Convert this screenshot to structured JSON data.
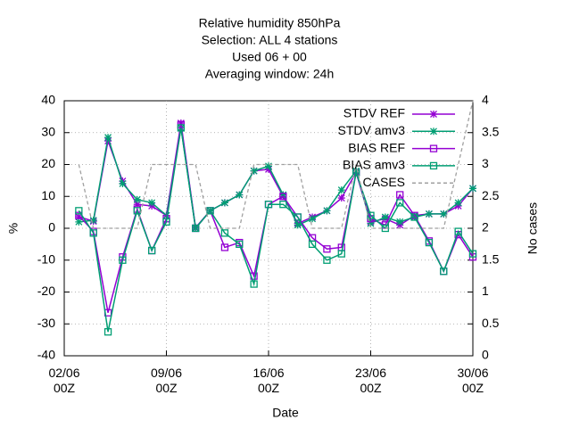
{
  "chart_data": {
    "type": "line",
    "title": [
      "Relative humidity 850hPa",
      "Selection: ALL      4 stations",
      "Used  06  + 00",
      "Averaging window: 24h"
    ],
    "xlabel": "Date",
    "ylabel": "%",
    "y2label": "No cases",
    "x": [
      3,
      4,
      5,
      6,
      7,
      8,
      9,
      10,
      11,
      12,
      13,
      14,
      15,
      16,
      17,
      18,
      19,
      20,
      21,
      22,
      23,
      24,
      25,
      26,
      27,
      28,
      29,
      30
    ],
    "series": [
      {
        "name": "STDV REF",
        "color": "#9400d3",
        "marker": "star",
        "values": [
          3.6,
          2.2,
          27.4,
          14.8,
          7.5,
          7,
          4,
          33,
          0.2,
          5.5,
          8,
          10.5,
          18,
          18.5,
          10,
          1.5,
          3.5,
          5.5,
          9.5,
          17.5,
          2,
          3,
          1,
          4,
          4.5,
          4.5,
          7,
          12.5
        ]
      },
      {
        "name": "STDV amv3",
        "color": "#009e73",
        "marker": "star",
        "values": [
          2,
          2.5,
          28.5,
          14,
          9,
          8,
          4,
          31.5,
          0,
          5.5,
          8,
          10.5,
          18,
          19.5,
          10.5,
          1,
          3,
          5.5,
          12,
          18,
          1.5,
          3.5,
          2,
          3.5,
          4.5,
          4.5,
          8,
          12.5
        ]
      },
      {
        "name": "BIAS REF",
        "color": "#9400d3",
        "marker": "square",
        "values": [
          4,
          -1,
          -26.5,
          -9,
          6,
          -7,
          3,
          32.5,
          0,
          5.5,
          -6,
          -4.5,
          -15,
          7.5,
          10,
          3.5,
          -3,
          -6.5,
          -6,
          17.5,
          3,
          1,
          10.5,
          4,
          -4,
          -13.5,
          -2,
          -9
        ]
      },
      {
        "name": "BIAS amv3",
        "color": "#009e73",
        "marker": "square",
        "values": [
          5.5,
          -1.5,
          -32.5,
          -10,
          5.5,
          -7,
          2,
          31.5,
          0,
          5.5,
          -1.5,
          -5,
          -17.5,
          7.5,
          7.5,
          3.5,
          -5,
          -10,
          -8,
          17.5,
          4,
          0,
          8,
          3.5,
          -4.5,
          -13.5,
          -1,
          -8
        ]
      },
      {
        "name": "CASES",
        "color": "#a0a0a0",
        "marker": "none",
        "dashed": true,
        "axis": "y2",
        "values": [
          3,
          2,
          2,
          2,
          2,
          3,
          3,
          3,
          3,
          2,
          2,
          2,
          3,
          3,
          3,
          3,
          2,
          2,
          2,
          3,
          2,
          2,
          2,
          2,
          2,
          2,
          3,
          4
        ]
      }
    ],
    "xlim": [
      2,
      30
    ],
    "xticks": [
      {
        "value": 2,
        "label": "02/06\n00Z"
      },
      {
        "value": 9,
        "label": "09/06\n00Z"
      },
      {
        "value": 16,
        "label": "16/06\n00Z"
      },
      {
        "value": 23,
        "label": "23/06\n00Z"
      },
      {
        "value": 30,
        "label": "30/06\n00Z"
      }
    ],
    "ylim": [
      -40,
      40
    ],
    "yticks": [
      -40,
      -30,
      -20,
      -10,
      0,
      10,
      20,
      30,
      40
    ],
    "y2lim": [
      0,
      4
    ],
    "y2ticks": [
      0,
      0.5,
      1,
      1.5,
      2,
      2.5,
      3,
      3.5,
      4
    ],
    "grid": true,
    "legend": "top-right"
  }
}
